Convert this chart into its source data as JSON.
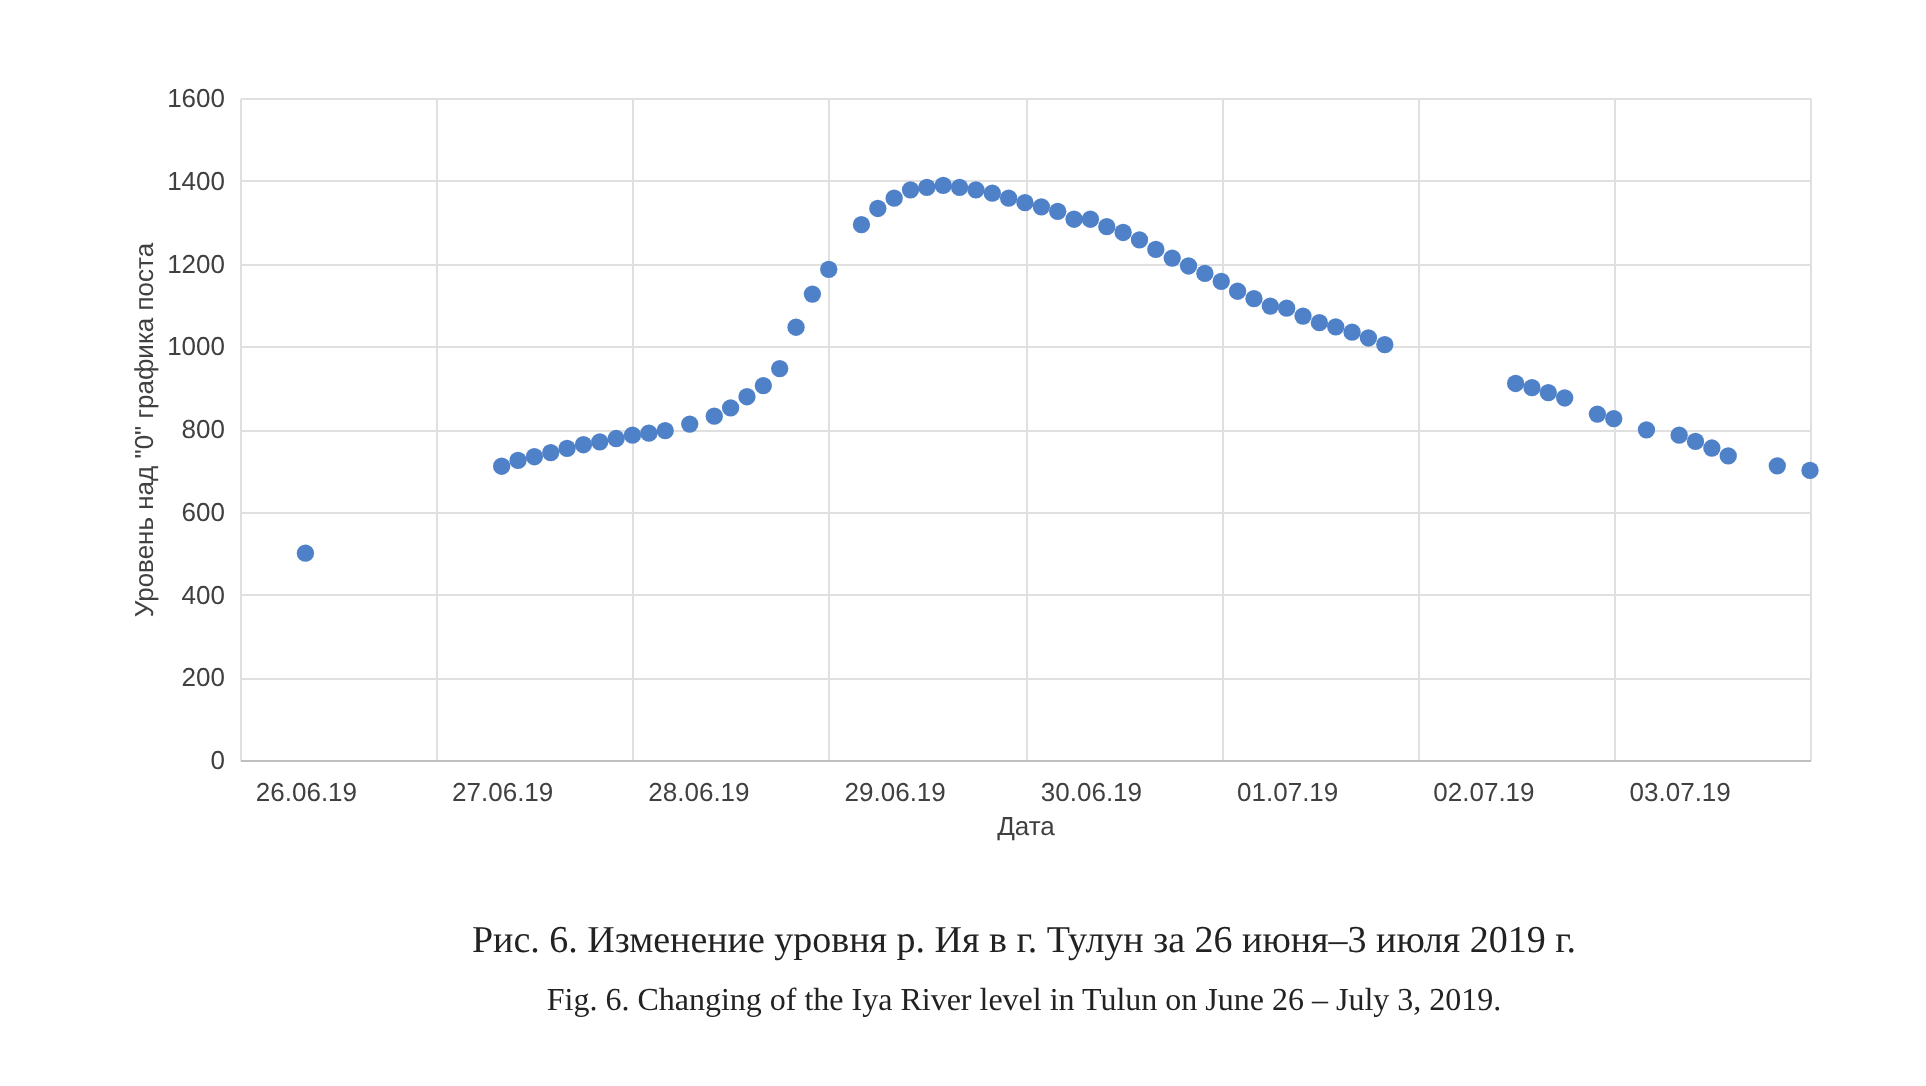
{
  "chart_data": {
    "type": "scatter",
    "xlabel": "Дата",
    "ylabel": "Уровень над \"0\" графика поста",
    "x": [
      "2019-06-26T00:00",
      "2019-06-27T00:00",
      "2019-06-27T02:00",
      "2019-06-27T04:00",
      "2019-06-27T06:00",
      "2019-06-27T08:00",
      "2019-06-27T10:00",
      "2019-06-27T12:00",
      "2019-06-27T14:00",
      "2019-06-27T16:00",
      "2019-06-27T18:00",
      "2019-06-27T20:00",
      "2019-06-27T23:00",
      "2019-06-28T02:00",
      "2019-06-28T04:00",
      "2019-06-28T06:00",
      "2019-06-28T08:00",
      "2019-06-28T10:00",
      "2019-06-28T12:00",
      "2019-06-28T14:00",
      "2019-06-28T16:00",
      "2019-06-28T20:00",
      "2019-06-28T22:00",
      "2019-06-29T00:00",
      "2019-06-29T02:00",
      "2019-06-29T04:00",
      "2019-06-29T06:00",
      "2019-06-29T08:00",
      "2019-06-29T10:00",
      "2019-06-29T12:00",
      "2019-06-29T14:00",
      "2019-06-29T16:00",
      "2019-06-29T18:00",
      "2019-06-29T20:00",
      "2019-06-29T22:00",
      "2019-06-30T00:00",
      "2019-06-30T02:00",
      "2019-06-30T04:00",
      "2019-06-30T06:00",
      "2019-06-30T08:00",
      "2019-06-30T10:00",
      "2019-06-30T12:00",
      "2019-06-30T14:00",
      "2019-06-30T16:00",
      "2019-06-30T18:00",
      "2019-06-30T20:00",
      "2019-06-30T22:00",
      "2019-07-01T00:00",
      "2019-07-01T02:00",
      "2019-07-01T04:00",
      "2019-07-01T06:00",
      "2019-07-01T08:00",
      "2019-07-01T10:00",
      "2019-07-01T12:00",
      "2019-07-02T04:00",
      "2019-07-02T06:00",
      "2019-07-02T08:00",
      "2019-07-02T10:00",
      "2019-07-02T14:00",
      "2019-07-02T16:00",
      "2019-07-02T20:00",
      "2019-07-03T00:00",
      "2019-07-03T02:00",
      "2019-07-03T04:00",
      "2019-07-03T06:00",
      "2019-07-03T12:00",
      "2019-07-03T16:00"
    ],
    "series": [
      {
        "color": "#4f81c9",
        "values": [
          500,
          710,
          724,
          733,
          743,
          753,
          762,
          769,
          777,
          785,
          790,
          796,
          812,
          831,
          851,
          878,
          905,
          946,
          1046,
          1126,
          1186,
          1294,
          1333,
          1358,
          1378,
          1384,
          1389,
          1384,
          1378,
          1370,
          1358,
          1347,
          1337,
          1326,
          1307,
          1307,
          1289,
          1275,
          1257,
          1234,
          1213,
          1194,
          1176,
          1157,
          1133,
          1115,
          1097,
          1092,
          1073,
          1057,
          1047,
          1034,
          1020,
          1004,
          910,
          900,
          888,
          875,
          836,
          825,
          798,
          785,
          770,
          754,
          735,
          711,
          700
        ]
      }
    ],
    "xlim": [
      "2019-06-25T16:00",
      "2019-07-03T16:00"
    ],
    "xticks": [
      {
        "value": "2019-06-25T16:00",
        "label": null
      },
      {
        "value": "2019-06-26T00:00",
        "label": "26.06.19"
      },
      {
        "value": "2019-06-26T16:00",
        "label": null
      },
      {
        "value": "2019-06-27T00:00",
        "label": "27.06.19"
      },
      {
        "value": "2019-06-27T16:00",
        "label": null
      },
      {
        "value": "2019-06-28T00:00",
        "label": "28.06.19"
      },
      {
        "value": "2019-06-28T16:00",
        "label": null
      },
      {
        "value": "2019-06-29T00:00",
        "label": "29.06.19"
      },
      {
        "value": "2019-06-29T16:00",
        "label": null
      },
      {
        "value": "2019-06-30T00:00",
        "label": "30.06.19"
      },
      {
        "value": "2019-06-30T16:00",
        "label": null
      },
      {
        "value": "2019-07-01T00:00",
        "label": "01.07.19"
      },
      {
        "value": "2019-07-01T16:00",
        "label": null
      },
      {
        "value": "2019-07-02T00:00",
        "label": "02.07.19"
      },
      {
        "value": "2019-07-02T16:00",
        "label": null
      },
      {
        "value": "2019-07-03T00:00",
        "label": "03.07.19"
      },
      {
        "value": "2019-07-03T16:00",
        "label": null
      }
    ],
    "ylim": [
      0,
      1600
    ],
    "yticks": [
      0,
      200,
      400,
      600,
      800,
      1000,
      1200,
      1400,
      1600
    ],
    "grid": true,
    "marker": "circle",
    "annotations": [
      "Рис. 6. Изменение уровня р. Ия в г. Тулун за 26 июня–3 июля 2019 г.",
      "Fig. 6. Changing of the Iya River level in Tulun on June 26 – July 3, 2019."
    ]
  }
}
